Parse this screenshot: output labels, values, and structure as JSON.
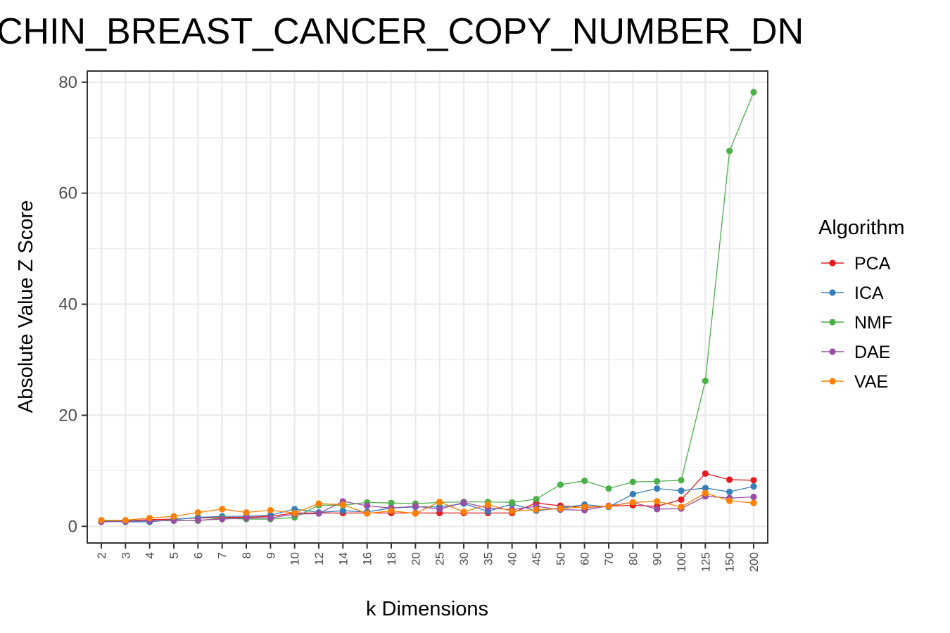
{
  "chart_data": {
    "type": "line",
    "title": "CHIN_BREAST_CANCER_COPY_NUMBER_DN",
    "xlabel": "k Dimensions",
    "ylabel": "Absolute Value Z Score",
    "categories": [
      "2",
      "3",
      "4",
      "5",
      "6",
      "7",
      "8",
      "9",
      "10",
      "12",
      "14",
      "16",
      "18",
      "20",
      "25",
      "30",
      "35",
      "40",
      "45",
      "50",
      "60",
      "70",
      "80",
      "90",
      "100",
      "125",
      "150",
      "200"
    ],
    "ylim": [
      -3,
      82
    ],
    "yticks": [
      0,
      20,
      40,
      60,
      80
    ],
    "ytick_labels": [
      "0",
      "20",
      "40",
      "60",
      "80"
    ],
    "grid": true,
    "legend_title": "Algorithm",
    "legend_position": "right",
    "series": [
      {
        "name": "PCA",
        "color": "#E41A1C",
        "values": [
          1.0,
          1.0,
          1.2,
          1.3,
          1.5,
          1.6,
          1.6,
          1.8,
          2.4,
          2.4,
          2.4,
          2.4,
          2.4,
          2.4,
          2.4,
          2.4,
          2.4,
          2.4,
          4.2,
          3.7,
          3.4,
          3.6,
          3.8,
          3.6,
          4.8,
          9.5,
          8.4,
          8.3
        ]
      },
      {
        "name": "ICA",
        "color": "#377EB8",
        "values": [
          0.9,
          0.8,
          0.8,
          1.2,
          1.6,
          1.8,
          1.8,
          2.0,
          3.1,
          2.5,
          2.8,
          2.6,
          3.3,
          3.5,
          3.5,
          4.1,
          2.7,
          4.0,
          2.8,
          3.3,
          3.9,
          3.5,
          5.8,
          6.8,
          6.4,
          6.9,
          6.2,
          7.2
        ]
      },
      {
        "name": "NMF",
        "color": "#4DAF4A",
        "values": [
          1.0,
          1.0,
          1.0,
          1.1,
          1.0,
          1.5,
          1.3,
          1.3,
          1.6,
          3.8,
          3.8,
          4.3,
          4.2,
          4.1,
          4.3,
          4.4,
          4.4,
          4.3,
          4.9,
          7.5,
          8.2,
          6.8,
          8.0,
          8.1,
          8.3,
          26.2,
          67.6,
          78.2
        ]
      },
      {
        "name": "DAE",
        "color": "#984EA3",
        "values": [
          0.8,
          0.9,
          1.0,
          1.0,
          1.1,
          1.3,
          1.5,
          1.5,
          2.2,
          2.3,
          4.5,
          3.7,
          3.3,
          3.6,
          3.1,
          4.3,
          3.3,
          3.0,
          3.6,
          3.0,
          2.9,
          3.7,
          4.3,
          3.1,
          3.2,
          5.4,
          5.1,
          5.3
        ]
      },
      {
        "name": "VAE",
        "color": "#FF7F00",
        "values": [
          1.1,
          1.1,
          1.5,
          1.8,
          2.5,
          3.1,
          2.5,
          2.9,
          2.4,
          4.1,
          3.9,
          2.3,
          2.8,
          2.3,
          4.4,
          2.6,
          3.9,
          2.7,
          3.0,
          3.2,
          3.5,
          3.6,
          4.3,
          4.5,
          3.5,
          6.0,
          4.6,
          4.2
        ]
      }
    ]
  }
}
